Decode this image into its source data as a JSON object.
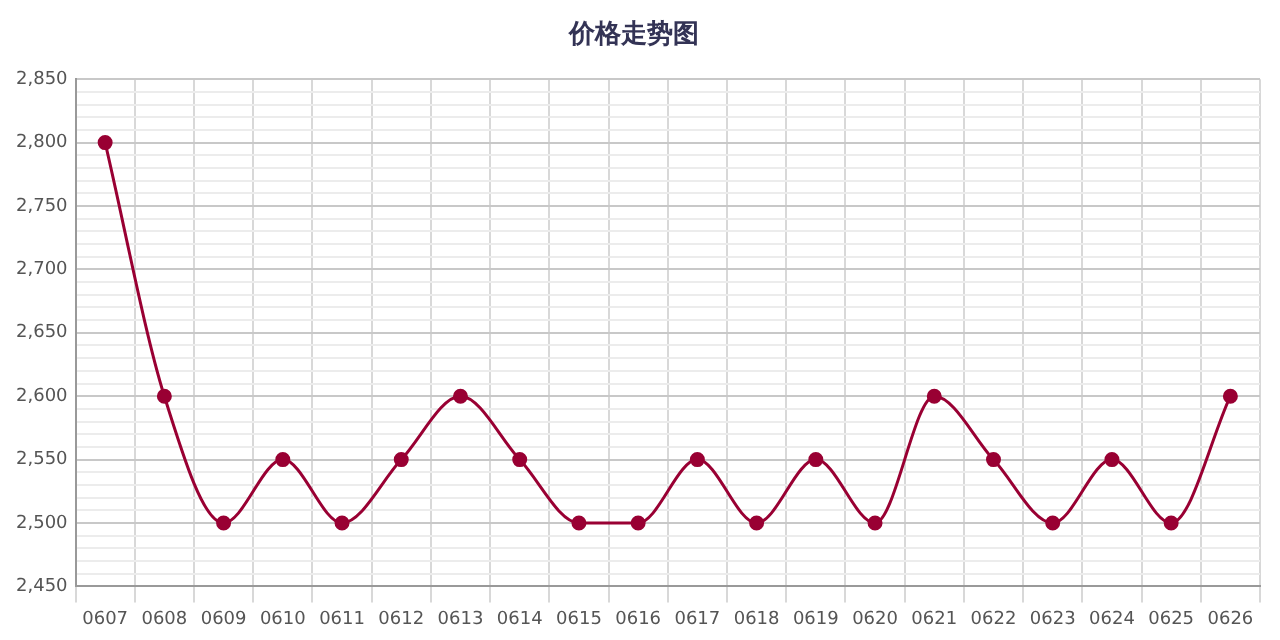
{
  "chart_data": {
    "type": "line",
    "title": "价格走势图",
    "categories": [
      "0607",
      "0608",
      "0609",
      "0610",
      "0611",
      "0612",
      "0613",
      "0614",
      "0615",
      "0616",
      "0617",
      "0618",
      "0619",
      "0620",
      "0621",
      "0622",
      "0623",
      "0624",
      "0625",
      "0626"
    ],
    "series": [
      {
        "color": "#990033",
        "values": [
          2800,
          2600,
          2500,
          2550,
          2500,
          2550,
          2600,
          2550,
          2500,
          2500,
          2550,
          2500,
          2550,
          2500,
          2600,
          2550,
          2500,
          2550,
          2500,
          2600
        ]
      }
    ],
    "ylim": [
      2450,
      2850
    ],
    "yticks": [
      {
        "value": 2450,
        "label": "2,450"
      },
      {
        "value": 2460,
        "label": null
      },
      {
        "value": 2470,
        "label": null
      },
      {
        "value": 2480,
        "label": null
      },
      {
        "value": 2490,
        "label": null
      },
      {
        "value": 2500,
        "label": "2,500"
      },
      {
        "value": 2510,
        "label": null
      },
      {
        "value": 2520,
        "label": null
      },
      {
        "value": 2530,
        "label": null
      },
      {
        "value": 2540,
        "label": null
      },
      {
        "value": 2550,
        "label": "2,550"
      },
      {
        "value": 2560,
        "label": null
      },
      {
        "value": 2570,
        "label": null
      },
      {
        "value": 2580,
        "label": null
      },
      {
        "value": 2590,
        "label": null
      },
      {
        "value": 2600,
        "label": "2,600"
      },
      {
        "value": 2610,
        "label": null
      },
      {
        "value": 2620,
        "label": null
      },
      {
        "value": 2630,
        "label": null
      },
      {
        "value": 2640,
        "label": null
      },
      {
        "value": 2650,
        "label": "2,650"
      },
      {
        "value": 2660,
        "label": null
      },
      {
        "value": 2670,
        "label": null
      },
      {
        "value": 2680,
        "label": null
      },
      {
        "value": 2690,
        "label": null
      },
      {
        "value": 2700,
        "label": "2,700"
      },
      {
        "value": 2710,
        "label": null
      },
      {
        "value": 2720,
        "label": null
      },
      {
        "value": 2730,
        "label": null
      },
      {
        "value": 2740,
        "label": null
      },
      {
        "value": 2750,
        "label": "2,750"
      },
      {
        "value": 2760,
        "label": null
      },
      {
        "value": 2770,
        "label": null
      },
      {
        "value": 2780,
        "label": null
      },
      {
        "value": 2790,
        "label": null
      },
      {
        "value": 2800,
        "label": "2,800"
      },
      {
        "value": 2810,
        "label": null
      },
      {
        "value": 2820,
        "label": null
      },
      {
        "value": 2830,
        "label": null
      },
      {
        "value": 2840,
        "label": null
      },
      {
        "value": 2850,
        "label": "2,850"
      }
    ],
    "grid": true,
    "legend": false,
    "marker": "circle",
    "line_style": "solid"
  }
}
